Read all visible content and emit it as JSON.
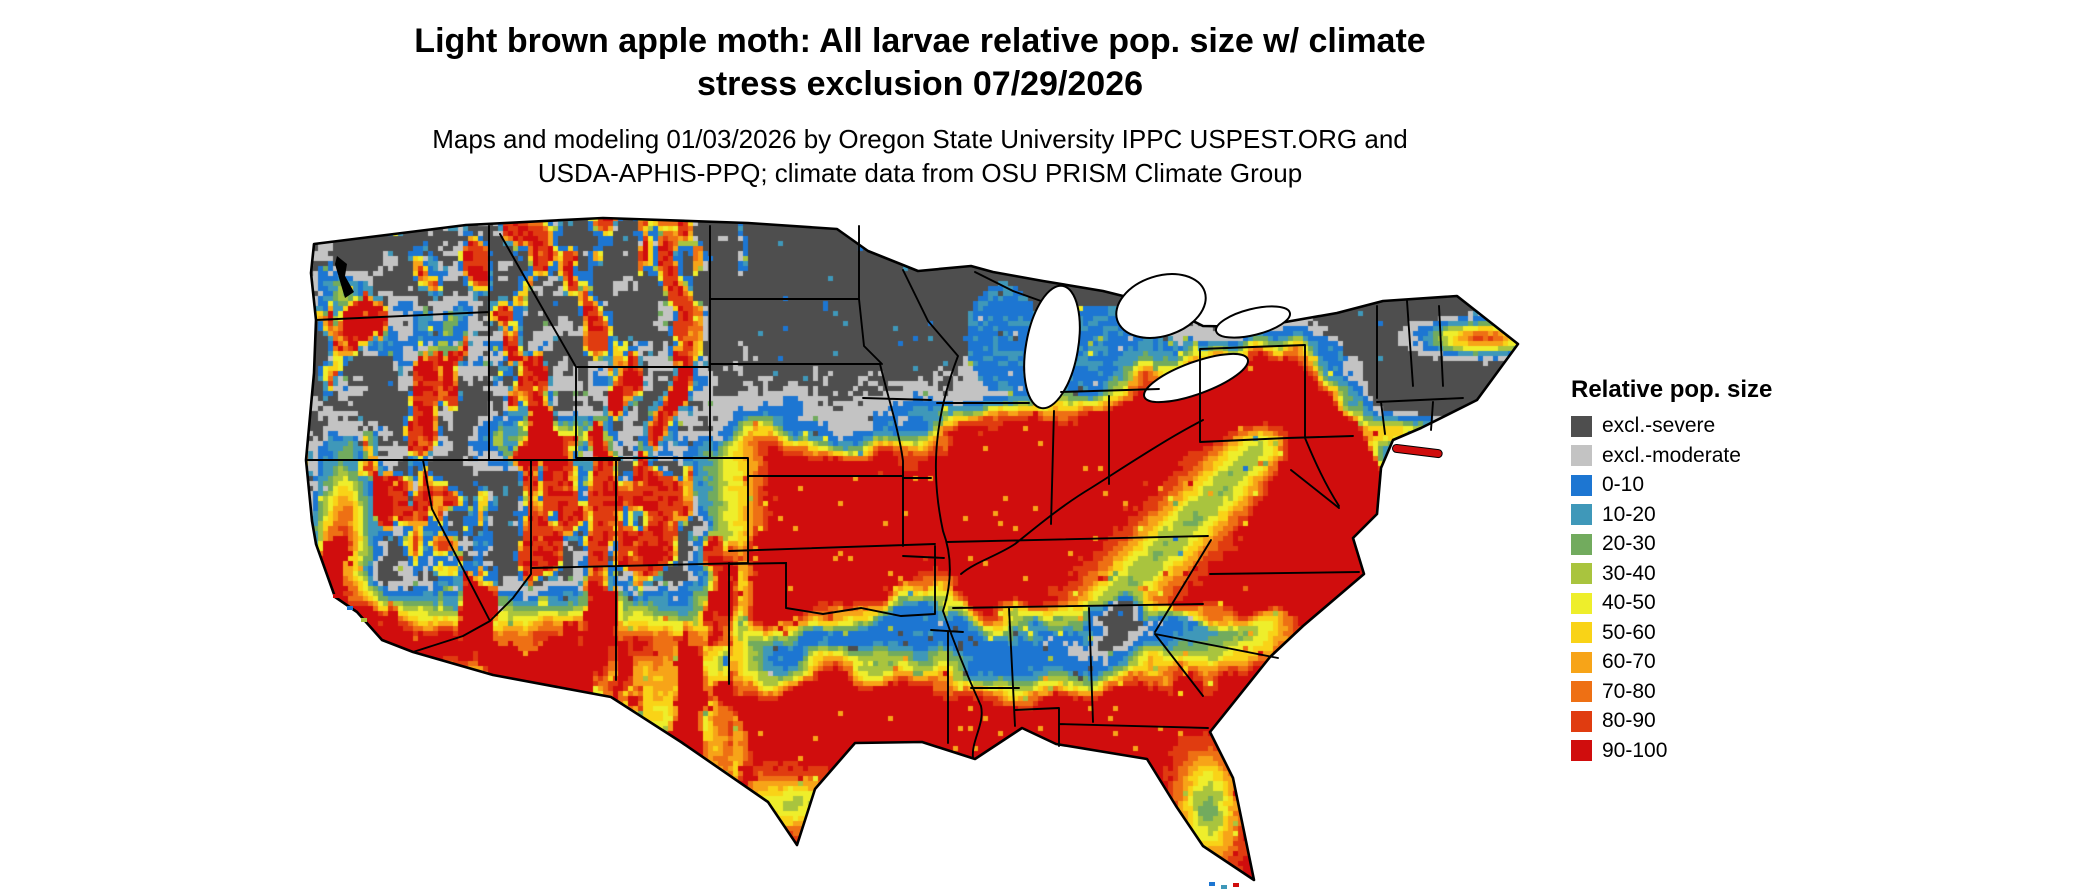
{
  "figure": {
    "title_lines": [
      "Light brown apple moth: All larvae relative pop. size w/ climate",
      "stress exclusion 07/29/2026"
    ],
    "subtitle_lines": [
      "Maps and modeling 01/03/2026 by Oregon State University IPPC USPEST.ORG and",
      "USDA-APHIS-PPQ; climate data from OSU PRISM Climate Group"
    ]
  },
  "legend": {
    "title": "Relative pop. size",
    "items": [
      {
        "label": "excl.-severe",
        "color": "#4e4e4e"
      },
      {
        "label": "excl.-moderate",
        "color": "#c3c3c3"
      },
      {
        "label": "0-10",
        "color": "#1d76d2"
      },
      {
        "label": "10-20",
        "color": "#3f98b9"
      },
      {
        "label": "20-30",
        "color": "#72ab5e"
      },
      {
        "label": "30-40",
        "color": "#a9c43e"
      },
      {
        "label": "40-50",
        "color": "#eeee2b"
      },
      {
        "label": "50-60",
        "color": "#f9d317"
      },
      {
        "label": "60-70",
        "color": "#f7a418"
      },
      {
        "label": "70-80",
        "color": "#ee7014"
      },
      {
        "label": "80-90",
        "color": "#e03c10"
      },
      {
        "label": "90-100",
        "color": "#d00d0d"
      }
    ]
  }
}
